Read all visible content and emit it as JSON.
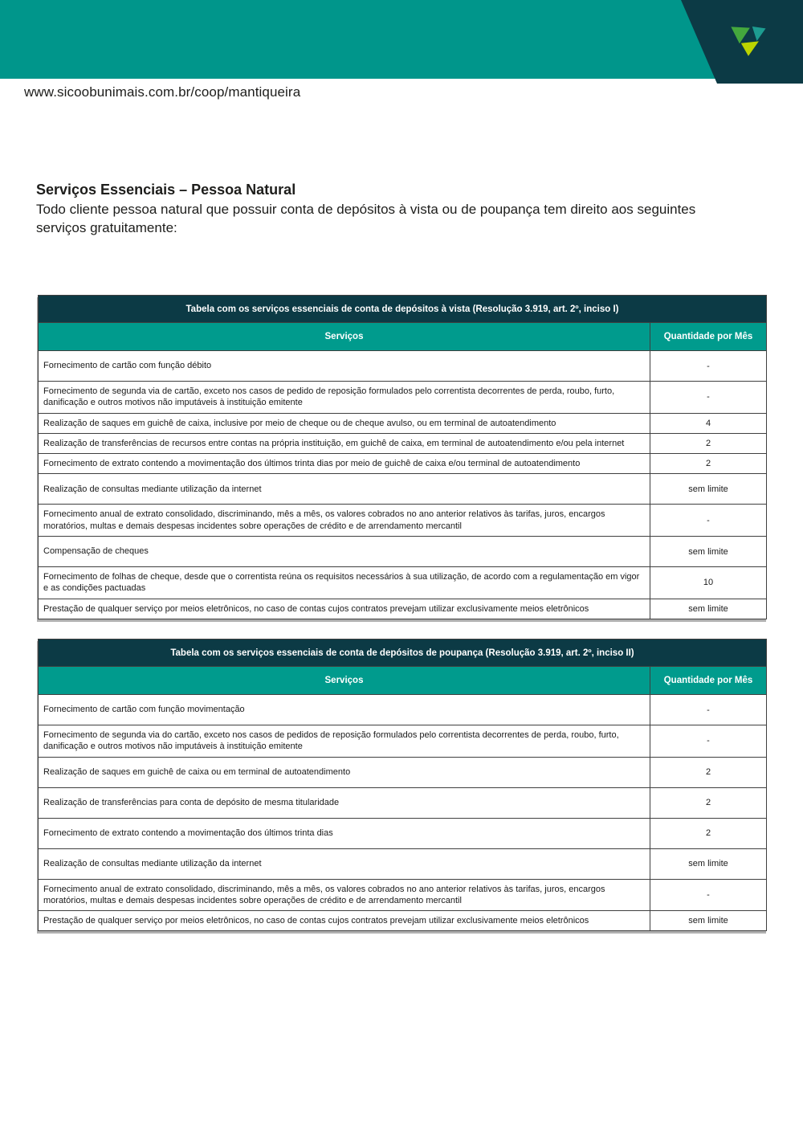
{
  "meta": {
    "url": "www.sicoobunimais.com.br/coop/mantiqueira"
  },
  "colors": {
    "topbar_teal": "#00968B",
    "dark_navy": "#0C3A45",
    "table_header_teal": "#009B8D",
    "logo_green": "#44A83D",
    "logo_teal": "#1D9C90",
    "logo_lime": "#BCD400"
  },
  "content": {
    "heading": "Serviços Essenciais – Pessoa Natural",
    "intro_line1": "Todo cliente pessoa natural que possuir conta de depósitos à vista ou de poupança tem direito aos seguintes",
    "intro_line2": "serviços gratuitamente:"
  },
  "tables": [
    {
      "title": "Tabela com os serviços essenciais de conta de depósitos à vista (Resolução 3.919, art. 2º, inciso I)",
      "columns": [
        "Serviços",
        "Quantidade por Mês"
      ],
      "rows": [
        {
          "service": "Fornecimento de cartão com função débito",
          "quantity": "-"
        },
        {
          "service": "Fornecimento de segunda via de cartão, exceto nos casos de pedido de reposição formulados pelo correntista decorrentes de perda, roubo, furto, danificação e outros motivos não imputáveis à instituição emitente",
          "quantity": "-"
        },
        {
          "service": "Realização de saques em guichê de caixa, inclusive por meio de cheque ou de cheque avulso, ou em terminal de autoatendimento",
          "quantity": "4"
        },
        {
          "service": "Realização de transferências de recursos entre contas na própria instituição, em guichê de caixa, em terminal de autoatendimento e/ou pela internet",
          "quantity": "2"
        },
        {
          "service": "Fornecimento de extrato contendo a movimentação dos últimos trinta dias por meio de guichê de caixa e/ou terminal de autoatendimento",
          "quantity": "2"
        },
        {
          "service": "Realização de consultas mediante utilização da internet",
          "quantity": "sem limite"
        },
        {
          "service": "Fornecimento anual de extrato consolidado, discriminando, mês a mês, os valores cobrados no ano anterior relativos às tarifas, juros, encargos moratórios, multas e demais despesas incidentes sobre operações de crédito e de arrendamento mercantil",
          "quantity": "-"
        },
        {
          "service": "Compensação de cheques",
          "quantity": "sem limite"
        },
        {
          "service": "Fornecimento de folhas de cheque, desde que o correntista reúna os requisitos necessários à sua utilização, de acordo com a regulamentação em vigor e as condições pactuadas",
          "quantity": "10"
        },
        {
          "service": "Prestação de qualquer serviço por meios eletrônicos, no caso de contas cujos contratos prevejam utilizar exclusivamente meios eletrônicos",
          "quantity": "sem limite"
        }
      ]
    },
    {
      "title": "Tabela com os serviços essenciais de conta de depósitos de poupança (Resolução 3.919, art. 2º, inciso II)",
      "columns": [
        "Serviços",
        "Quantidade por Mês"
      ],
      "rows": [
        {
          "service": "Fornecimento de cartão com função movimentação",
          "quantity": "-"
        },
        {
          "service": "Fornecimento de segunda via do cartão, exceto nos casos de pedidos de reposição formulados pelo correntista decorrentes de perda, roubo, furto, danificação e outros motivos não imputáveis à instituição emitente",
          "quantity": "-"
        },
        {
          "service": "Realização de saques em guichê de caixa ou em terminal de autoatendimento",
          "quantity": "2"
        },
        {
          "service": "Realização de transferências para conta de depósito de mesma titularidade",
          "quantity": "2"
        },
        {
          "service": "Fornecimento de extrato contendo a movimentação dos últimos trinta dias",
          "quantity": "2"
        },
        {
          "service": "Realização de consultas mediante utilização da internet",
          "quantity": "sem limite"
        },
        {
          "service": "Fornecimento anual de extrato consolidado, discriminando, mês a mês, os valores cobrados no ano anterior relativos às tarifas, juros, encargos moratórios, multas e demais despesas incidentes sobre operações de crédito e de arrendamento mercantil",
          "quantity": "-"
        },
        {
          "service": "Prestação de qualquer serviço por meios eletrônicos, no caso de contas cujos contratos prevejam utilizar exclusivamente meios eletrônicos",
          "quantity": "sem limite"
        }
      ]
    }
  ]
}
